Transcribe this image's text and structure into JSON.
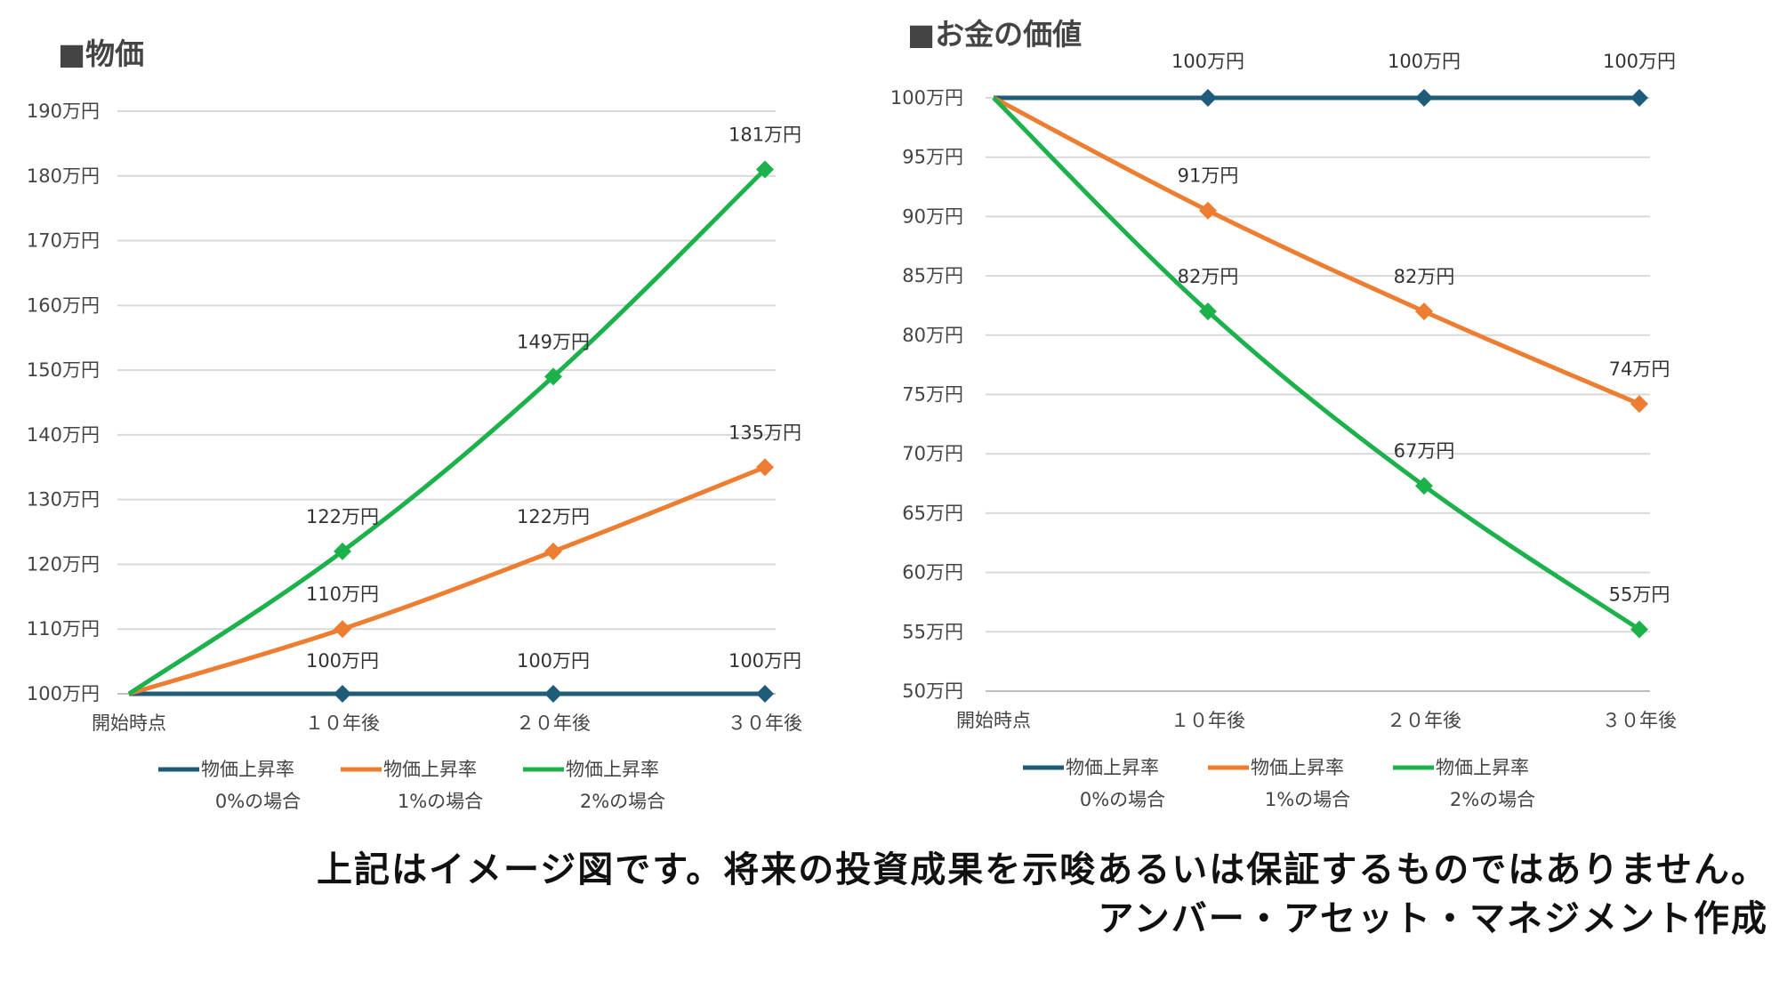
{
  "chart_data": [
    {
      "type": "line",
      "title": "■物価",
      "categories": [
        "開始時点",
        "１０年後",
        "２０年後",
        "３０年後"
      ],
      "ylim": [
        100,
        190
      ],
      "ytick_step": 10,
      "y_unit": "万円",
      "grid": true,
      "legend_position": "bottom",
      "series": [
        {
          "name": "物価上昇率0%の場合",
          "legend": [
            "物価上昇率",
            "0%の場合"
          ],
          "color": "#1F5C7A",
          "values": [
            100,
            100,
            100,
            100
          ],
          "labels": [
            "",
            "100万円",
            "100万円",
            "100万円"
          ]
        },
        {
          "name": "物価上昇率1%の場合",
          "legend": [
            "物価上昇率",
            "1%の場合"
          ],
          "color": "#ED7D31",
          "values": [
            100,
            110,
            122,
            135
          ],
          "labels": [
            "",
            "110万円",
            "122万円",
            "135万円"
          ]
        },
        {
          "name": "物価上昇率2%の場合",
          "legend": [
            "物価上昇率",
            "2%の場合"
          ],
          "color": "#1DB14B",
          "values": [
            100,
            122,
            149,
            181
          ],
          "labels": [
            "",
            "122万円",
            "149万円",
            "181万円"
          ]
        }
      ]
    },
    {
      "type": "line",
      "title": "■お金の価値",
      "categories": [
        "開始時点",
        "１０年後",
        "２０年後",
        "３０年後"
      ],
      "ylim": [
        50,
        100
      ],
      "ytick_step": 5,
      "y_unit": "万円",
      "grid": true,
      "legend_position": "bottom",
      "series": [
        {
          "name": "物価上昇率0%の場合",
          "legend": [
            "物価上昇率",
            "0%の場合"
          ],
          "color": "#1F5C7A",
          "values": [
            100,
            100,
            100,
            100
          ],
          "labels": [
            "",
            "100万円",
            "100万円",
            "100万円"
          ]
        },
        {
          "name": "物価上昇率1%の場合",
          "legend": [
            "物価上昇率",
            "1%の場合"
          ],
          "color": "#ED7D31",
          "values": [
            100,
            90.5,
            82,
            74.2
          ],
          "labels": [
            "",
            "91万円",
            "82万円",
            "74万円"
          ]
        },
        {
          "name": "物価上昇率2%の場合",
          "legend": [
            "物価上昇率",
            "2%の場合"
          ],
          "color": "#1DB14B",
          "values": [
            100,
            82,
            67.3,
            55.2
          ],
          "labels": [
            "",
            "82万円",
            "67万円",
            "55万円"
          ]
        }
      ]
    }
  ],
  "footer": {
    "disclaimer": "上記はイメージ図です。将来の投資成果を示唆あるいは保証するものではありません。",
    "credit": "アンバー・アセット・マネジメント作成"
  }
}
